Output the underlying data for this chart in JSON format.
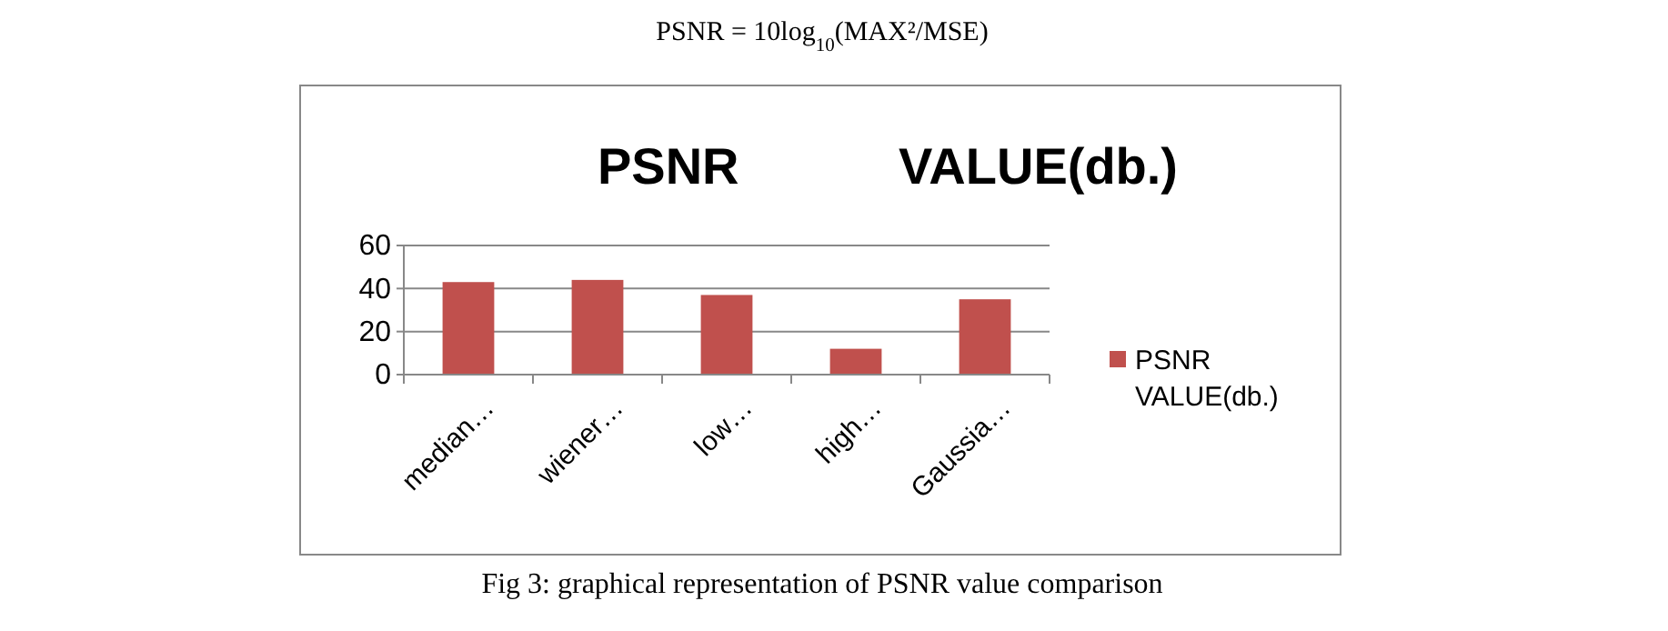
{
  "chart_data": {
    "type": "bar",
    "title": "PSNR VALUE(db.)",
    "categories": [
      "median…",
      "wiener…",
      "low…",
      "high…",
      "Gaussia…"
    ],
    "series": [
      {
        "name": "PSNR VALUE(db.)",
        "color": "#c0504d",
        "values": [
          43,
          44,
          37,
          12,
          35
        ]
      }
    ],
    "ylim": [
      0,
      60
    ],
    "yticks": [
      0,
      20,
      40,
      60
    ],
    "grid": "y",
    "legend": "right",
    "annotations": [
      "PSNR = 10log$_{10}$(MAX²/MSE)",
      "Fig 3: graphical representation of PSNR value comparison"
    ]
  }
}
